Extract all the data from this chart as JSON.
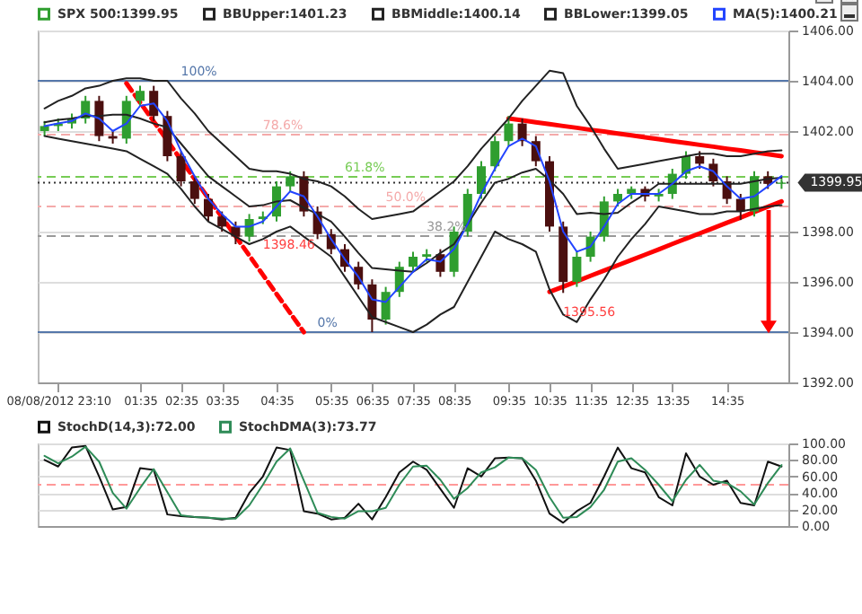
{
  "chart_data": [
    {
      "type": "candlestick",
      "categories": [
        null,
        "08/08/2012 23:10",
        null,
        null,
        null,
        null,
        null,
        "01:35",
        null,
        null,
        "02:35",
        null,
        null,
        "03:35",
        null,
        null,
        null,
        "04:35",
        null,
        null,
        null,
        "05:35",
        null,
        null,
        "06:35",
        null,
        null,
        "07:35",
        null,
        null,
        "08:35",
        null,
        null,
        null,
        "09:35",
        null,
        null,
        "10:35",
        null,
        null,
        "11:35",
        null,
        null,
        "12:35",
        null,
        null,
        "13:35",
        null,
        null,
        null,
        "14:35",
        null,
        null,
        null,
        null
      ],
      "ylim": [
        1392,
        1406
      ],
      "yticks": [
        {
          "value": 1392,
          "label": "1392.00"
        },
        {
          "value": 1394,
          "label": "1394.00"
        },
        {
          "value": 1396,
          "label": "1396.00"
        },
        {
          "value": 1398,
          "label": "1398.00"
        },
        {
          "value": 1402,
          "label": "1402.00"
        },
        {
          "value": 1404,
          "label": "1404.00"
        },
        {
          "value": 1406,
          "label": "1406.00"
        }
      ],
      "grid": "y",
      "legend": "top left",
      "series": [
        {
          "name": "SPX 500:1399.95",
          "color": "#2f9e2f",
          "colors": [
            "#2f9e2f",
            "#2f9e2f",
            "#2f9e2f",
            "#2f9e2f",
            "#4b0f0f",
            "#4b0f0f",
            "#2f9e2f",
            "#2f9e2f",
            "#4b0f0f",
            "#4b0f0f",
            "#4b0f0f",
            "#4b0f0f",
            "#4b0f0f",
            "#4b0f0f",
            "#4b0f0f",
            "#2f9e2f",
            "#2f9e2f",
            "#2f9e2f",
            "#2f9e2f",
            "#4b0f0f",
            "#4b0f0f",
            "#4b0f0f",
            "#4b0f0f",
            "#4b0f0f",
            "#4b0f0f",
            "#2f9e2f",
            "#2f9e2f",
            "#2f9e2f",
            "#2f9e2f",
            "#4b0f0f",
            "#2f9e2f",
            "#2f9e2f",
            "#2f9e2f",
            "#2f9e2f",
            "#2f9e2f",
            "#4b0f0f",
            "#4b0f0f",
            "#4b0f0f",
            "#4b0f0f",
            "#2f9e2f",
            "#2f9e2f",
            "#2f9e2f",
            "#2f9e2f",
            "#2f9e2f",
            "#4b0f0f",
            "#2f9e2f",
            "#2f9e2f",
            "#2f9e2f",
            "#4b0f0f",
            "#4b0f0f",
            "#4b0f0f",
            "#4b0f0f",
            "#2f9e2f",
            "#4b0f0f",
            "#2f9e2f"
          ],
          "ohlc": [
            [
              1402.0,
              1402.4,
              1401.8,
              1402.2
            ],
            [
              1402.2,
              1402.5,
              1402.0,
              1402.3
            ],
            [
              1402.3,
              1402.7,
              1402.1,
              1402.5
            ],
            [
              1402.5,
              1403.4,
              1402.3,
              1403.2
            ],
            [
              1403.2,
              1403.4,
              1401.6,
              1401.8
            ],
            [
              1401.8,
              1402.0,
              1401.5,
              1401.7
            ],
            [
              1401.7,
              1403.4,
              1401.5,
              1403.2
            ],
            [
              1403.2,
              1403.8,
              1403.0,
              1403.6
            ],
            [
              1403.6,
              1403.8,
              1402.4,
              1402.6
            ],
            [
              1402.6,
              1402.8,
              1400.8,
              1401.0
            ],
            [
              1401.0,
              1401.2,
              1399.8,
              1400.0
            ],
            [
              1400.0,
              1400.2,
              1399.1,
              1399.3
            ],
            [
              1399.3,
              1399.5,
              1398.4,
              1398.6
            ],
            [
              1398.6,
              1398.8,
              1398.0,
              1398.2
            ],
            [
              1398.2,
              1398.4,
              1397.5,
              1397.8
            ],
            [
              1397.8,
              1398.7,
              1397.6,
              1398.5
            ],
            [
              1398.5,
              1398.8,
              1398.3,
              1398.6
            ],
            [
              1398.6,
              1400.0,
              1398.4,
              1399.8
            ],
            [
              1399.8,
              1400.4,
              1399.6,
              1400.2
            ],
            [
              1400.2,
              1400.4,
              1398.6,
              1398.8
            ],
            [
              1398.8,
              1399.0,
              1397.7,
              1397.9
            ],
            [
              1397.9,
              1398.1,
              1397.1,
              1397.3
            ],
            [
              1397.3,
              1397.5,
              1396.4,
              1396.6
            ],
            [
              1396.6,
              1396.8,
              1395.7,
              1395.9
            ],
            [
              1395.9,
              1396.1,
              1394.0,
              1394.5
            ],
            [
              1394.5,
              1395.8,
              1394.3,
              1395.6
            ],
            [
              1395.6,
              1396.8,
              1395.4,
              1396.6
            ],
            [
              1396.6,
              1397.2,
              1396.4,
              1397.0
            ],
            [
              1397.0,
              1397.3,
              1396.8,
              1397.1
            ],
            [
              1397.1,
              1397.3,
              1396.2,
              1396.4
            ],
            [
              1396.4,
              1398.2,
              1396.2,
              1398.0
            ],
            [
              1398.0,
              1399.7,
              1397.8,
              1399.5
            ],
            [
              1399.5,
              1400.8,
              1399.3,
              1400.6
            ],
            [
              1400.6,
              1401.8,
              1400.4,
              1401.6
            ],
            [
              1401.6,
              1402.6,
              1401.4,
              1402.3
            ],
            [
              1402.3,
              1402.5,
              1401.4,
              1401.6
            ],
            [
              1401.6,
              1401.8,
              1400.6,
              1400.8
            ],
            [
              1400.8,
              1401.0,
              1398.0,
              1398.2
            ],
            [
              1398.2,
              1398.4,
              1395.56,
              1396.0
            ],
            [
              1396.0,
              1397.2,
              1395.8,
              1397.0
            ],
            [
              1397.0,
              1398.0,
              1396.8,
              1397.8
            ],
            [
              1397.8,
              1399.4,
              1397.6,
              1399.2
            ],
            [
              1399.2,
              1399.7,
              1399.0,
              1399.5
            ],
            [
              1399.5,
              1399.8,
              1399.3,
              1399.7
            ],
            [
              1399.7,
              1399.8,
              1399.2,
              1399.4
            ],
            [
              1399.4,
              1399.7,
              1399.2,
              1399.5
            ],
            [
              1399.5,
              1400.5,
              1399.3,
              1400.3
            ],
            [
              1400.3,
              1401.2,
              1400.1,
              1401.0
            ],
            [
              1401.0,
              1401.2,
              1400.5,
              1400.7
            ],
            [
              1400.7,
              1400.9,
              1399.8,
              1400.0
            ],
            [
              1400.0,
              1400.2,
              1399.1,
              1399.3
            ],
            [
              1399.3,
              1399.5,
              1398.46,
              1398.8
            ],
            [
              1398.8,
              1400.4,
              1398.6,
              1400.2
            ],
            [
              1400.2,
              1400.4,
              1399.7,
              1399.9
            ],
            [
              1399.9,
              1400.1,
              1399.7,
              1399.95
            ]
          ]
        },
        {
          "type": "line",
          "name": "BBUpper:1401.23",
          "color": "#222222",
          "values": [
            1402.9,
            1403.2,
            1403.4,
            1403.7,
            1403.8,
            1404.0,
            1404.1,
            1404.1,
            1404.0,
            1404.0,
            1403.3,
            1402.7,
            1402.0,
            1401.5,
            1401.0,
            1400.5,
            1400.4,
            1400.4,
            1400.3,
            1400.1,
            1400.0,
            1399.8,
            1399.4,
            1398.9,
            1398.5,
            1398.6,
            1398.7,
            1398.8,
            1399.2,
            1399.6,
            1400.0,
            1400.6,
            1401.3,
            1401.9,
            1402.5,
            1403.2,
            1403.8,
            1404.4,
            1404.3,
            1403.0,
            1402.2,
            1401.3,
            1400.5,
            1400.6,
            1400.7,
            1400.8,
            1400.9,
            1401.0,
            1401.1,
            1401.1,
            1401.0,
            1401.0,
            1401.1,
            1401.2,
            1401.23
          ]
        },
        {
          "type": "line",
          "name": "BBMiddle:1400.14",
          "color": "#222222",
          "values": [
            1402.35,
            1402.45,
            1402.5,
            1402.6,
            1402.6,
            1402.65,
            1402.65,
            1402.5,
            1402.3,
            1402.15,
            1401.5,
            1400.85,
            1400.2,
            1399.8,
            1399.4,
            1399.0,
            1399.05,
            1399.2,
            1399.25,
            1398.95,
            1398.7,
            1398.4,
            1397.8,
            1397.15,
            1396.55,
            1396.5,
            1396.45,
            1396.4,
            1396.75,
            1397.15,
            1397.5,
            1398.3,
            1399.15,
            1399.95,
            1400.1,
            1400.35,
            1400.5,
            1400.05,
            1399.5,
            1398.7,
            1398.75,
            1398.7,
            1398.75,
            1399.15,
            1399.5,
            1399.9,
            1399.9,
            1399.9,
            1399.9,
            1399.9,
            1399.9,
            1399.9,
            1400.0,
            1400.1,
            1400.14
          ]
        },
        {
          "type": "line",
          "name": "BBLower:1399.05",
          "color": "#222222",
          "values": [
            1401.8,
            1401.7,
            1401.6,
            1401.5,
            1401.4,
            1401.3,
            1401.2,
            1400.9,
            1400.6,
            1400.3,
            1399.7,
            1399.0,
            1398.4,
            1398.1,
            1397.8,
            1397.5,
            1397.7,
            1398.0,
            1398.2,
            1397.8,
            1397.4,
            1397.0,
            1396.2,
            1395.4,
            1394.6,
            1394.4,
            1394.2,
            1394.0,
            1394.3,
            1394.7,
            1395.0,
            1396.0,
            1397.0,
            1398.0,
            1397.7,
            1397.5,
            1397.2,
            1395.7,
            1394.7,
            1394.4,
            1395.3,
            1396.1,
            1397.0,
            1397.7,
            1398.3,
            1399.0,
            1398.9,
            1398.8,
            1398.7,
            1398.7,
            1398.8,
            1398.8,
            1398.9,
            1399.0,
            1399.05
          ]
        },
        {
          "type": "line",
          "name": "MA(5):1400.21",
          "color": "#2244ff",
          "values": [
            1402.2,
            1402.3,
            1402.4,
            1402.7,
            1402.5,
            1402.0,
            1402.3,
            1403.0,
            1403.1,
            1402.4,
            1401.2,
            1400.2,
            1399.3,
            1398.7,
            1398.2,
            1398.2,
            1398.4,
            1399.0,
            1399.6,
            1399.4,
            1398.6,
            1397.7,
            1396.9,
            1396.2,
            1395.3,
            1395.2,
            1395.8,
            1396.4,
            1396.9,
            1396.8,
            1397.3,
            1398.3,
            1399.5,
            1400.5,
            1401.4,
            1401.7,
            1401.4,
            1400.0,
            1398.0,
            1397.2,
            1397.4,
            1398.2,
            1399.1,
            1399.5,
            1399.5,
            1399.5,
            1399.9,
            1400.4,
            1400.6,
            1400.4,
            1399.8,
            1399.3,
            1399.4,
            1399.8,
            1400.21
          ]
        },
        {
          "type": "line",
          "color": "#ff0000",
          "line_style": "dashed",
          "values": [
            null,
            null,
            null,
            null,
            null,
            null,
            1403.9,
            1403.14,
            1402.38,
            1401.62,
            1400.85,
            1400.09,
            1399.33,
            1398.57,
            1397.81,
            1397.05,
            1396.28,
            1395.52,
            1394.76,
            1394.0,
            null,
            null,
            null,
            null,
            null,
            null,
            null,
            null,
            null,
            null,
            null,
            null,
            null,
            null,
            null,
            null,
            null,
            null,
            null,
            null,
            null,
            null,
            null,
            null,
            null,
            null,
            null,
            null,
            null,
            null,
            null,
            null,
            null,
            null,
            null
          ]
        },
        {
          "type": "line",
          "color": "#ff0000",
          "values": [
            null,
            null,
            null,
            null,
            null,
            null,
            null,
            null,
            null,
            null,
            null,
            null,
            null,
            null,
            null,
            null,
            null,
            null,
            null,
            null,
            null,
            null,
            null,
            null,
            null,
            null,
            null,
            null,
            null,
            null,
            null,
            null,
            null,
            null,
            1402.5,
            1402.43,
            1402.35,
            1402.28,
            1402.2,
            1402.13,
            1402.05,
            1401.98,
            1401.9,
            1401.83,
            1401.75,
            1401.68,
            1401.6,
            1401.53,
            1401.45,
            1401.38,
            1401.3,
            1401.23,
            1401.15,
            1401.08,
            1401.0
          ]
        },
        {
          "type": "line",
          "color": "#ff0000",
          "values": [
            null,
            null,
            null,
            null,
            null,
            null,
            null,
            null,
            null,
            null,
            null,
            null,
            null,
            null,
            null,
            null,
            null,
            null,
            null,
            null,
            null,
            null,
            null,
            null,
            null,
            null,
            null,
            null,
            null,
            null,
            null,
            null,
            null,
            null,
            null,
            null,
            null,
            1395.6,
            1395.81,
            1396.02,
            1396.24,
            1396.45,
            1396.66,
            1396.87,
            1397.08,
            1397.29,
            1397.51,
            1397.72,
            1397.93,
            1398.14,
            1398.35,
            1398.56,
            1398.78,
            1398.99,
            1399.2
          ]
        }
      ],
      "ref_lines": [
        {
          "axis": "y",
          "value": 1404,
          "color": "#5577aa",
          "line_style": "solid"
        },
        {
          "axis": "y",
          "value": 1401.86,
          "color": "#f4aaaa",
          "line_style": "dashed"
        },
        {
          "axis": "y",
          "value": 1400.18,
          "color": "#77cc55",
          "line_style": "dashed"
        },
        {
          "axis": "y",
          "value": 1399,
          "color": "#f4aaaa",
          "line_style": "dashed"
        },
        {
          "axis": "y",
          "value": 1397.82,
          "color": "#999999",
          "line_style": "dashed"
        },
        {
          "axis": "y",
          "value": 1394,
          "color": "#5577aa",
          "line_style": "solid"
        },
        {
          "axis": "y",
          "value": 1399.95,
          "label": "1399.95",
          "color": "#333333",
          "line_style": "dotted"
        }
      ],
      "annotations": [
        {
          "text": "100%",
          "y": 1404
        },
        {
          "text": "78.6%",
          "y": 1401.86
        },
        {
          "text": "61.8%",
          "y": 1400.18
        },
        {
          "text": "50.0%",
          "y": 1399
        },
        {
          "text": "38.2%",
          "y": 1397.82
        },
        {
          "text": "0%",
          "y": 1394
        },
        {
          "text": "1395.56",
          "y": 1395.2
        },
        {
          "text": "1398.46",
          "y": 1397.9
        }
      ]
    },
    {
      "type": "line",
      "categories": [
        null,
        null,
        null,
        null,
        null,
        null,
        null,
        null,
        null,
        null,
        null,
        null,
        null,
        null,
        null,
        null,
        null,
        null,
        null,
        null,
        null,
        null,
        null,
        null,
        null,
        null,
        null,
        null,
        null,
        null,
        null,
        null,
        null,
        null,
        null,
        null,
        null,
        null,
        null,
        null,
        null,
        null,
        null,
        null,
        null,
        null,
        null,
        null,
        null,
        null,
        null,
        null,
        null,
        null,
        null
      ],
      "ylim": [
        0,
        100
      ],
      "yticks": [
        {
          "value": 0,
          "label": "0.00"
        },
        {
          "value": 20,
          "label": "20.00"
        },
        {
          "value": 40,
          "label": "40.00"
        },
        {
          "value": 60,
          "label": "60.00"
        },
        {
          "value": 80,
          "label": "80.00"
        },
        {
          "value": 100,
          "label": "100.00"
        }
      ],
      "grid": "y",
      "legend": "top left",
      "series": [
        {
          "name": "StochD(14,3):72.00",
          "color": "#111111",
          "values": [
            80,
            72,
            95,
            97,
            60,
            20,
            23,
            70,
            68,
            14,
            12,
            11,
            10,
            8,
            10,
            40,
            60,
            95,
            92,
            18,
            15,
            8,
            10,
            27,
            8,
            35,
            65,
            78,
            68,
            45,
            22,
            70,
            60,
            82,
            83,
            82,
            55,
            15,
            4,
            18,
            28,
            60,
            95,
            70,
            65,
            35,
            25,
            88,
            60,
            50,
            55,
            28,
            25,
            78,
            72
          ]
        },
        {
          "name": "StochDMA(3):73.77",
          "color": "#2e8b57",
          "values": [
            85,
            76,
            84,
            96,
            78,
            40,
            21,
            46,
            69,
            41,
            13,
            11,
            10,
            9,
            9,
            25,
            50,
            78,
            94,
            55,
            16,
            11,
            9,
            18,
            18,
            22,
            50,
            72,
            73,
            56,
            33,
            46,
            65,
            71,
            83,
            82,
            68,
            35,
            10,
            11,
            23,
            44,
            78,
            82,
            68,
            50,
            30,
            56,
            74,
            55,
            52,
            42,
            26,
            52,
            73.77
          ]
        }
      ],
      "ref_lines": [
        {
          "axis": "y",
          "value": 50,
          "color": "#ff9999",
          "line_style": "dashed"
        }
      ]
    }
  ]
}
